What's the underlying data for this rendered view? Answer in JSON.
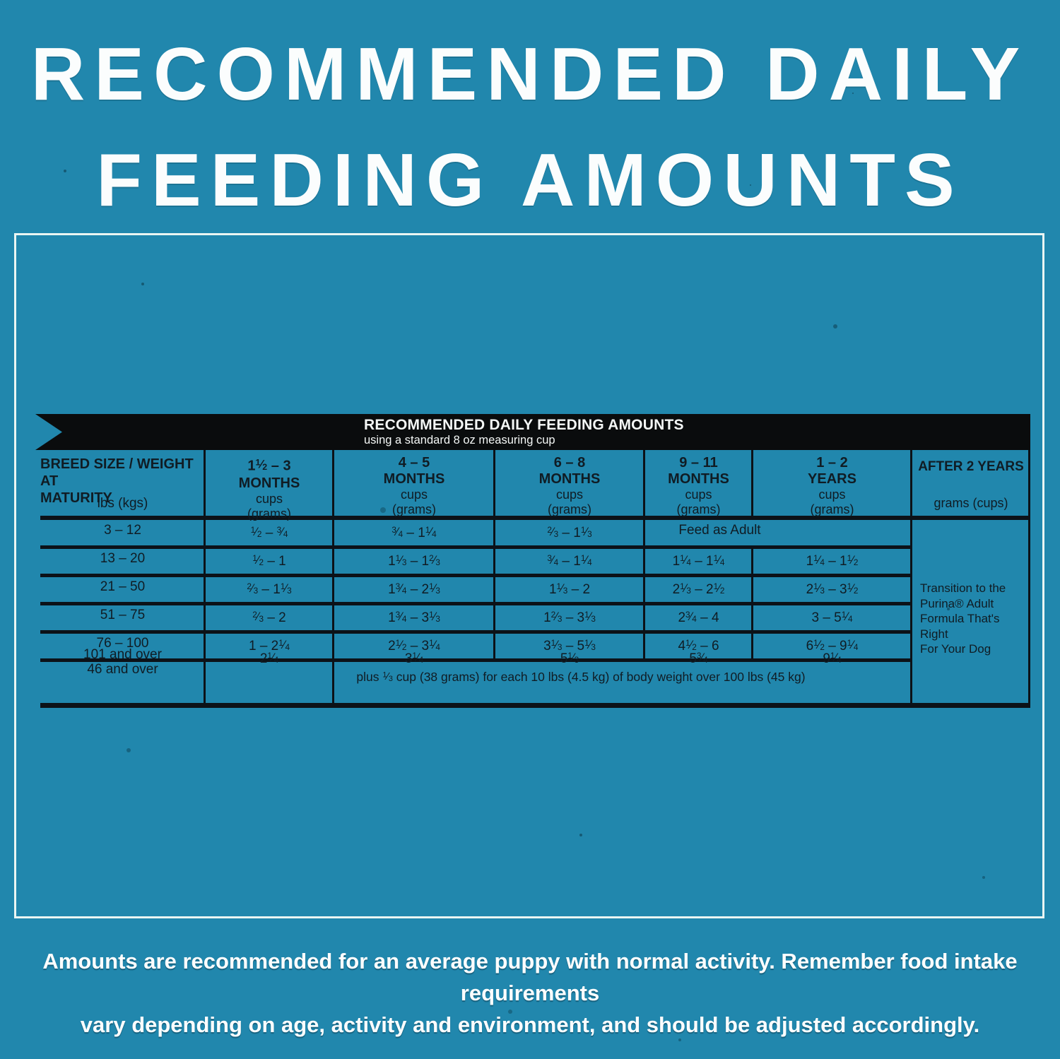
{
  "page": {
    "bg_color": "#2187ad",
    "title": "RECOMMENDED DAILY\nFEEDING AMOUNTS",
    "footer": "Amounts are recommended for an average puppy with normal activity. Remember food intake requirements\nvary depending on age, activity and environment, and should be adjusted accordingly."
  },
  "table": {
    "banner": {
      "title": "RECOMMENDED DAILY FEEDING AMOUNTS",
      "subtitle": "using a standard 8 oz measuring cup"
    },
    "header": {
      "breed_label": "BREED SIZE / WEIGHT AT\nMATURITY",
      "breed_units": "lbs  (kgs)",
      "periods": [
        {
          "range": "1 1/2 – 3",
          "unit": "MONTHS",
          "measure": "cups\n(grams)"
        },
        {
          "range": "4 – 5",
          "unit": "MONTHS",
          "measure": "cups\n(grams)"
        },
        {
          "range": "6 – 8",
          "unit": "MONTHS",
          "measure": "cups\n(grams)"
        },
        {
          "range": "9 – 11",
          "unit": "MONTHS",
          "measure": "cups\n(grams)"
        },
        {
          "range": "1 – 2",
          "unit": "YEARS",
          "measure": "cups\n(grams)"
        }
      ],
      "after": {
        "label": "AFTER 2 YEARS",
        "measure": "grams (cups)"
      }
    },
    "rows": [
      {
        "weight": "3 – 12",
        "v1": "1/2 – 3/4",
        "v2": "3/4 – 1 1/4",
        "v3": "2/3 – 1 1/3",
        "merged": "Feed as Adult"
      },
      {
        "weight": "13 – 20",
        "v1": "1/2 – 1",
        "v2": "1 1/3 – 1 2/3",
        "v3": "3/4 – 1 1/4",
        "v4": "1 1/4 – 1 1/4",
        "v5": "1 1/4 – 1 1/2"
      },
      {
        "weight": "21 – 50",
        "v1": "2/3 – 1 1/3",
        "v2": "1 3/4 – 2 1/3",
        "v3": "1 1/3 – 2",
        "v4": "2 1/3 – 2 1/2",
        "v5": "2 1/3 – 3 1/2"
      },
      {
        "weight": "51 – 75",
        "v1": "2/3 – 2",
        "v2": "1 3/4 – 3 1/3",
        "v3": "1 2/3 – 3 1/3",
        "v4": "2 3/4 – 4",
        "v5": "3 – 5 1/4"
      },
      {
        "weight": "76 – 100",
        "v1": "1 – 2 1/4",
        "v2": "2 1/2 – 3 1/4",
        "v3": "3 1/3 – 5 1/3",
        "v4": "4 1/2 – 6",
        "v5": "6 1/2 – 9 1/4"
      }
    ],
    "last_row": {
      "weight": "101 and over\n46 and over",
      "v1": "2 1/4",
      "v2": "3 1/4",
      "v3": "5 1/3",
      "v4": "5 3/4",
      "v5": "9 1/4",
      "note": "plus 1/3 cup (38 grams) for each 10 lbs (4.5 kg) of body weight over 100 lbs (45 kg)"
    },
    "adult_note": "Transition to the\nPurina® Adult\nFormula That's Right\nFor Your Dog"
  }
}
